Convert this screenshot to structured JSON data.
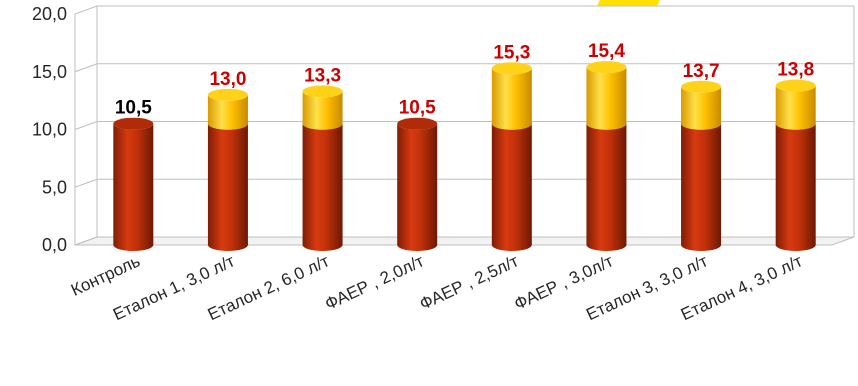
{
  "chart_data": {
    "type": "bar",
    "stacked": true,
    "three_d": true,
    "categories": [
      "Контроль",
      "Еталон 1, 3,0 л/т",
      "Еталон 2, 6,0 л/т",
      "ФАЕР , 2,0л/т",
      "ФАЕР , 2,5л/т",
      "ФАЕР , 3,0л/т",
      "Еталон 3, 3,0 л/т",
      "Еталон 4, 3,0 л/т"
    ],
    "series": [
      {
        "values": [
          10.5,
          10.5,
          10.5,
          10.5,
          10.5,
          10.5,
          10.5,
          10.5
        ],
        "color": "#c0310a"
      },
      {
        "values": [
          0,
          2.5,
          2.8,
          0,
          4.8,
          4.9,
          3.2,
          3.3
        ],
        "color": "#ffc000"
      }
    ],
    "totals": [
      "10,5",
      "13,0",
      "13,3",
      "10,5",
      "15,3",
      "15,4",
      "13,7",
      "13,8"
    ],
    "total_label_colors": [
      "#000000",
      "#cc0000",
      "#cc0000",
      "#cc0000",
      "#cc0000",
      "#cc0000",
      "#cc0000",
      "#cc0000"
    ],
    "y_ticks": [
      "0,0",
      "5,0",
      "10,0",
      "15,0",
      "20,0"
    ],
    "ylim": [
      0,
      20
    ],
    "grid": true,
    "legend": "none"
  }
}
